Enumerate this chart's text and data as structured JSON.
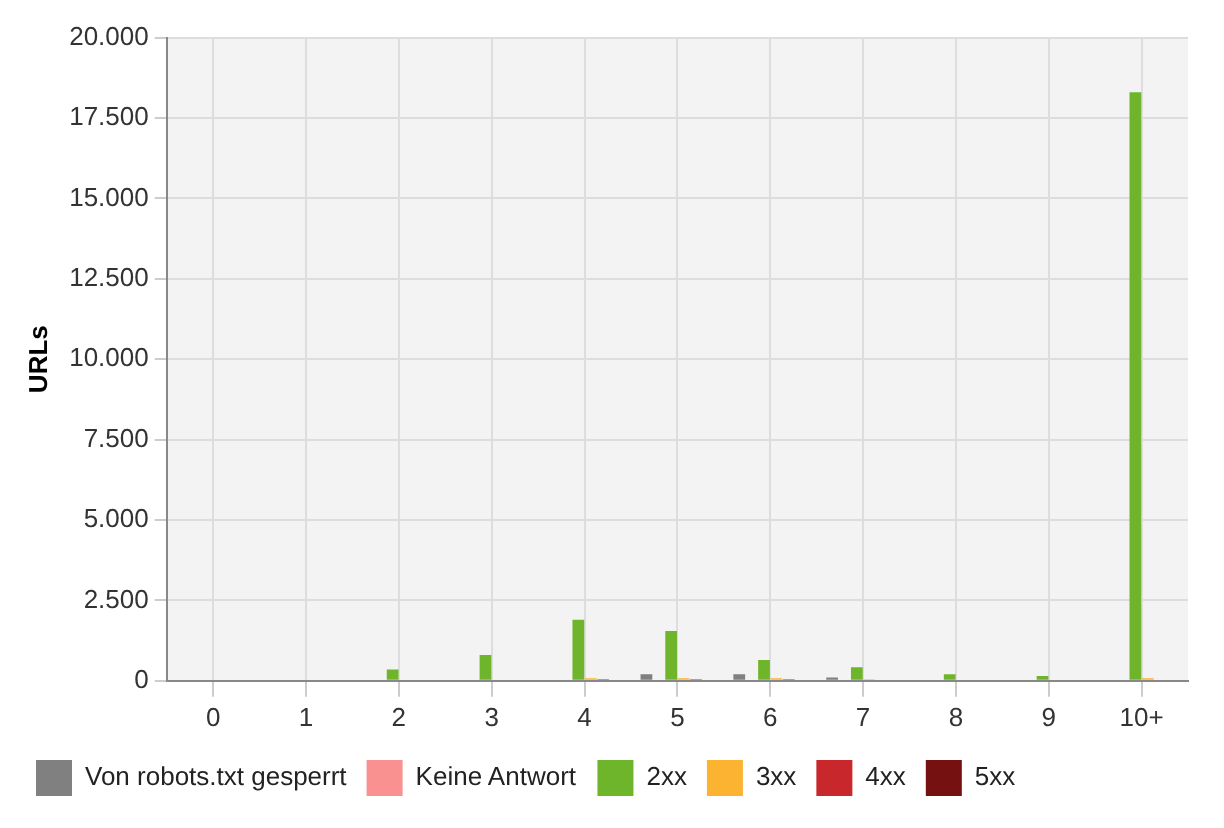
{
  "chart_data": {
    "type": "bar",
    "ylabel": "URLs",
    "categories": [
      "0",
      "1",
      "2",
      "3",
      "4",
      "5",
      "6",
      "7",
      "8",
      "9",
      "10+"
    ],
    "series": [
      {
        "name": "Von robots.txt gesperrt",
        "color": "#808080",
        "values": [
          0,
          0,
          0,
          0,
          0,
          200,
          200,
          100,
          30,
          0,
          0
        ]
      },
      {
        "name": "Keine Antwort",
        "color": "#f99191",
        "values": [
          0,
          0,
          0,
          0,
          0,
          0,
          0,
          0,
          0,
          0,
          0
        ]
      },
      {
        "name": "2xx",
        "color": "#6fb52c",
        "values": [
          0,
          0,
          350,
          800,
          1900,
          1550,
          650,
          420,
          200,
          150,
          18300
        ]
      },
      {
        "name": "3xx",
        "color": "#fbb331",
        "values": [
          0,
          0,
          0,
          30,
          80,
          80,
          80,
          50,
          30,
          30,
          80
        ]
      },
      {
        "name": "4xx",
        "color": "#c8282c",
        "values": [
          0,
          0,
          0,
          0,
          50,
          50,
          50,
          0,
          0,
          0,
          0
        ]
      },
      {
        "name": "5xx",
        "color": "#761111",
        "values": [
          0,
          0,
          0,
          0,
          0,
          0,
          0,
          0,
          0,
          0,
          0
        ]
      }
    ],
    "ylim": [
      0,
      20000
    ],
    "yticks": [
      {
        "value": 0,
        "label": "0"
      },
      {
        "value": 2500,
        "label": "2.500"
      },
      {
        "value": 5000,
        "label": "5.000"
      },
      {
        "value": 7500,
        "label": "7.500"
      },
      {
        "value": 10000,
        "label": "10.000"
      },
      {
        "value": 12500,
        "label": "12.500"
      },
      {
        "value": 15000,
        "label": "15.000"
      },
      {
        "value": 17500,
        "label": "17.500"
      },
      {
        "value": 20000,
        "label": "20.000"
      }
    ],
    "grid": true,
    "legend": "bottom"
  }
}
